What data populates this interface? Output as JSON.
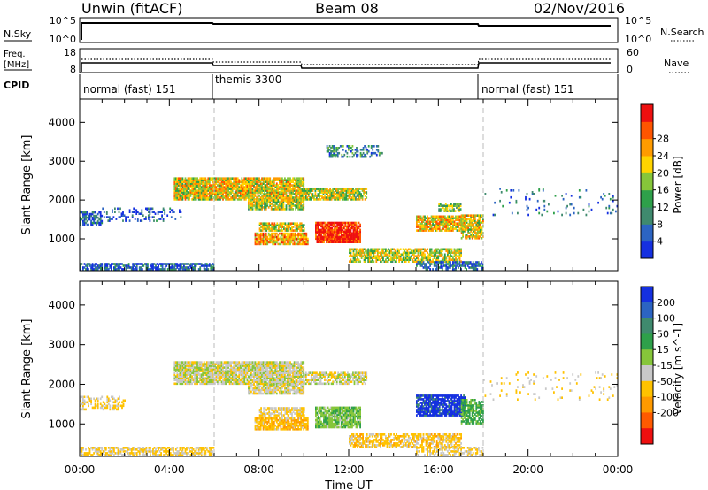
{
  "header": {
    "title_left": "Unwin (fitACF)",
    "title_center": "Beam 08",
    "title_right": "02/Nov/2016"
  },
  "status_panels": {
    "nsky_label": "N.Sky",
    "nsky_ticks": [
      "10^5",
      "10^0"
    ],
    "nsky_ticks_right": [
      "10^5",
      "10^0"
    ],
    "nsearch_label": "N.Search",
    "freq_label_1": "Freq.",
    "freq_label_2": "[MHz]",
    "freq_ticks": [
      "18",
      "8"
    ],
    "nave_ticks": [
      "60",
      "0"
    ],
    "nave_label": "Nave",
    "cpid_label": "CPID",
    "cpid_segments": [
      {
        "start": 0,
        "end": 6,
        "label": "normal (fast) 151"
      },
      {
        "start": 6,
        "end": 18,
        "label": "themis 3300"
      },
      {
        "start": 18,
        "end": 24,
        "label": "normal (fast) 151"
      }
    ]
  },
  "chart_data": [
    {
      "type": "heatmap",
      "name": "Power",
      "ylabel": "Slant Range [km]",
      "yticks": [
        "1000",
        "2000",
        "3000",
        "4000"
      ],
      "ylim": [
        180,
        4600
      ],
      "xlim": [
        0,
        24
      ],
      "colorbar_label": "Power [dB]",
      "colorbar_ticks": [
        "4",
        "8",
        "12",
        "16",
        "20",
        "24",
        "28"
      ],
      "colorbar_colors": [
        "#1530e0",
        "#2c64c2",
        "#3f8a6e",
        "#2ea04a",
        "#86c63a",
        "#ffd400",
        "#ff9b00",
        "#ff5500",
        "#ee1010"
      ],
      "features": [
        {
          "t0": 0.0,
          "t1": 6.0,
          "r0": 200,
          "r1": 380,
          "level": 0.15,
          "density": 0.7
        },
        {
          "t0": 0.0,
          "t1": 1.0,
          "r0": 1350,
          "r1": 1700,
          "level": 0.2,
          "density": 0.6
        },
        {
          "t0": 1.0,
          "t1": 4.5,
          "r0": 1450,
          "r1": 1800,
          "level": 0.12,
          "density": 0.25
        },
        {
          "t0": 4.2,
          "t1": 10.0,
          "r0": 2000,
          "r1": 2550,
          "level": 0.6,
          "density": 0.9
        },
        {
          "t0": 7.5,
          "t1": 10.0,
          "r0": 1750,
          "r1": 2000,
          "level": 0.55,
          "density": 0.8
        },
        {
          "t0": 8.0,
          "t1": 10.0,
          "r0": 1200,
          "r1": 1400,
          "level": 0.6,
          "density": 0.8
        },
        {
          "t0": 7.8,
          "t1": 10.2,
          "r0": 850,
          "r1": 1150,
          "level": 0.7,
          "density": 0.85
        },
        {
          "t0": 10.0,
          "t1": 12.8,
          "r0": 2000,
          "r1": 2300,
          "level": 0.55,
          "density": 0.8
        },
        {
          "t0": 10.5,
          "t1": 12.5,
          "r0": 900,
          "r1": 1400,
          "level": 0.95,
          "density": 0.9
        },
        {
          "t0": 11.0,
          "t1": 13.5,
          "r0": 3100,
          "r1": 3400,
          "level": 0.3,
          "density": 0.35
        },
        {
          "t0": 12.0,
          "t1": 17.0,
          "r0": 400,
          "r1": 750,
          "level": 0.55,
          "density": 0.7
        },
        {
          "t0": 15.0,
          "t1": 17.2,
          "r0": 1200,
          "r1": 1600,
          "level": 0.65,
          "density": 0.85
        },
        {
          "t0": 16.0,
          "t1": 17.0,
          "r0": 1700,
          "r1": 1900,
          "level": 0.45,
          "density": 0.6
        },
        {
          "t0": 17.0,
          "t1": 18.0,
          "r0": 1000,
          "r1": 1600,
          "level": 0.6,
          "density": 0.75
        },
        {
          "t0": 15.0,
          "t1": 18.0,
          "r0": 200,
          "r1": 400,
          "level": 0.2,
          "density": 0.6
        },
        {
          "t0": 18.0,
          "t1": 24.0,
          "r0": 1600,
          "r1": 2300,
          "level": 0.2,
          "density": 0.05
        }
      ]
    },
    {
      "type": "heatmap",
      "name": "Velocity",
      "ylabel": "Slant Range [km]",
      "yticks": [
        "1000",
        "2000",
        "3000",
        "4000"
      ],
      "ylim": [
        180,
        4600
      ],
      "xlim": [
        0,
        24
      ],
      "xticks": [
        "00:00",
        "04:00",
        "08:00",
        "12:00",
        "16:00",
        "20:00",
        "00:00"
      ],
      "xlabel": "Time UT",
      "colorbar_label": "Velocity [m s^-1]",
      "colorbar_ticks": [
        "200",
        "100",
        "50",
        "15",
        "-15",
        "-50",
        "-100",
        "-200"
      ],
      "colorbar_colors": [
        "#1530e0",
        "#2c64c2",
        "#3f8a6e",
        "#2ea04a",
        "#86c63a",
        "#c8c8c8",
        "#ffc200",
        "#ff9a00",
        "#ff5a00",
        "#ee1010"
      ],
      "features": [
        {
          "t0": 0.0,
          "t1": 6.0,
          "r0": 200,
          "r1": 420,
          "value": -20,
          "density": 0.65
        },
        {
          "t0": 0.0,
          "t1": 2.0,
          "r0": 1350,
          "r1": 1700,
          "value": -15,
          "density": 0.4
        },
        {
          "t0": 4.2,
          "t1": 10.0,
          "r0": 2000,
          "r1": 2550,
          "value": 0,
          "density": 0.9
        },
        {
          "t0": 7.5,
          "t1": 10.0,
          "r0": 1750,
          "r1": 2000,
          "value": 0,
          "density": 0.8
        },
        {
          "t0": 8.0,
          "t1": 10.0,
          "r0": 1200,
          "r1": 1400,
          "value": -20,
          "density": 0.7
        },
        {
          "t0": 7.8,
          "t1": 10.2,
          "r0": 850,
          "r1": 1150,
          "value": -40,
          "density": 0.8
        },
        {
          "t0": 10.0,
          "t1": 12.8,
          "r0": 2000,
          "r1": 2300,
          "value": 0,
          "density": 0.7
        },
        {
          "t0": 10.5,
          "t1": 12.5,
          "r0": 900,
          "r1": 1400,
          "value": 40,
          "density": 0.85
        },
        {
          "t0": 12.0,
          "t1": 17.0,
          "r0": 400,
          "r1": 750,
          "value": -30,
          "density": 0.65
        },
        {
          "t0": 15.0,
          "t1": 17.2,
          "r0": 1200,
          "r1": 1700,
          "value": 220,
          "density": 0.85
        },
        {
          "t0": 17.0,
          "t1": 18.0,
          "r0": 1000,
          "r1": 1600,
          "value": 60,
          "density": 0.7
        },
        {
          "t0": 15.0,
          "t1": 18.0,
          "r0": 200,
          "r1": 400,
          "value": -20,
          "density": 0.5
        },
        {
          "t0": 18.0,
          "t1": 24.0,
          "r0": 1600,
          "r1": 2300,
          "value": -20,
          "density": 0.05
        }
      ]
    }
  ]
}
